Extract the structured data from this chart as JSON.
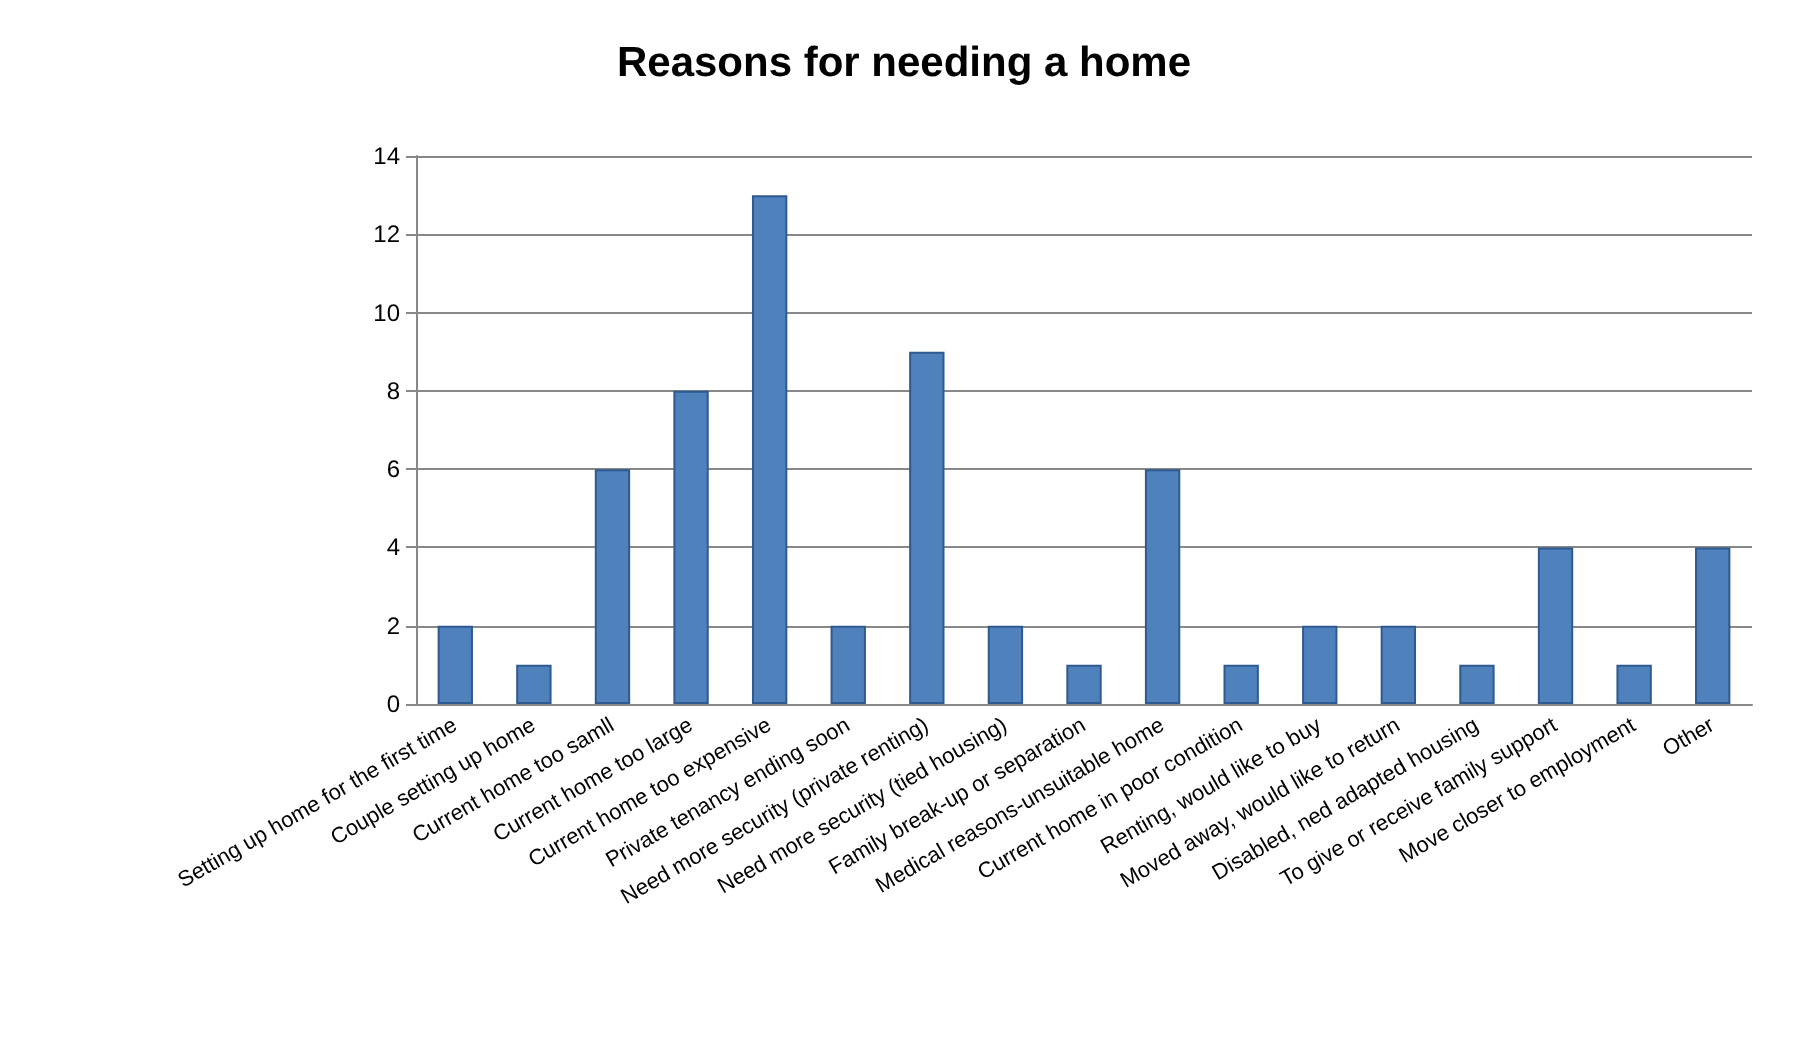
{
  "chart_data": {
    "type": "bar",
    "title": "Reasons for needing a home",
    "categories": [
      "Setting up home for the first time",
      "Couple setting up home",
      "Current home too samll",
      "Current home too large",
      "Current home too expensive",
      "Private tenancy ending soon",
      "Need more security (private renting)",
      "Need more security (tied housing)",
      "Family break-up or separation",
      "Medical reasons-unsuitable home",
      "Current home in poor condition",
      "Renting, would like to buy",
      "Moved away, would like to return",
      "Disabled, ned adapted housing",
      "To give or receive family support",
      "Move closer to employment",
      "Other"
    ],
    "values": [
      2,
      1,
      6,
      8,
      13,
      2,
      9,
      2,
      1,
      6,
      1,
      2,
      2,
      1,
      4,
      1,
      4
    ],
    "color": "#4f81bd",
    "ylim": [
      0,
      14
    ],
    "yticks": [
      0,
      2,
      4,
      6,
      8,
      10,
      12,
      14
    ],
    "grid": "y"
  }
}
